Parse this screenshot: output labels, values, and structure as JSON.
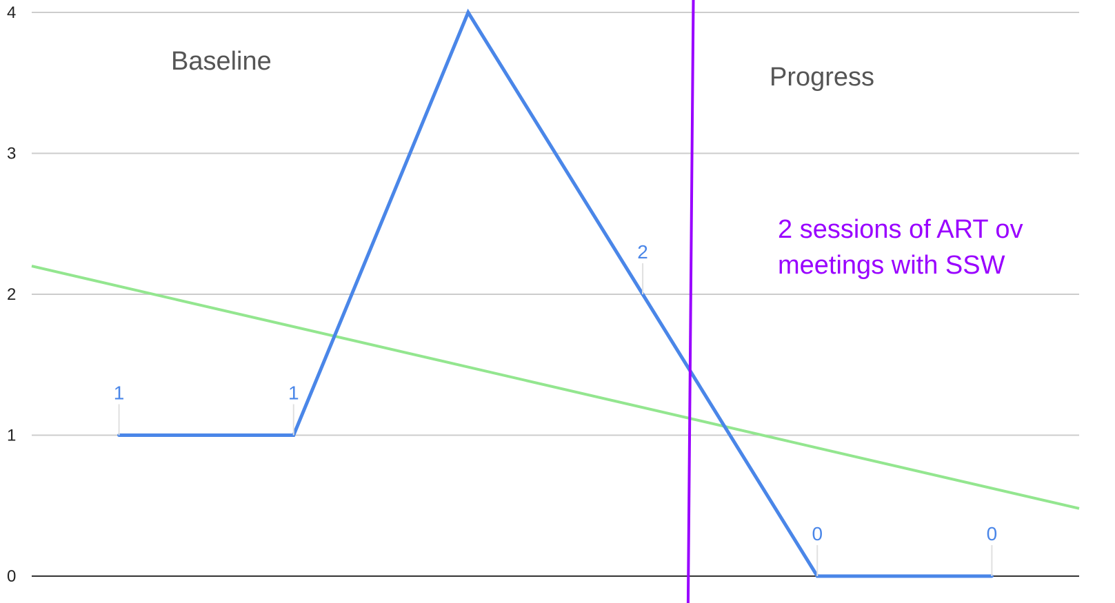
{
  "chart_data": {
    "type": "line",
    "x": [
      1,
      2,
      3,
      4,
      5,
      6
    ],
    "series": [
      {
        "values": [
          1,
          1,
          4,
          2,
          0,
          0
        ],
        "data_labels": [
          "1",
          "1",
          "",
          "2",
          "0",
          "0"
        ],
        "color": "#4a86e8"
      }
    ],
    "trendline": {
      "start": [
        0.5,
        2.2
      ],
      "end": [
        6.5,
        0.48
      ],
      "color": "#93e68f"
    },
    "phase_divider": {
      "x_bottom": 4.26,
      "x_top": 4.29,
      "color": "#9900ff"
    },
    "phase_labels": {
      "baseline": "Baseline",
      "progress": "Progress"
    },
    "annotation": {
      "lines": [
        "2 sessions of ART ov",
        "meetings with SSW"
      ],
      "color": "#9900ff"
    },
    "yticks": [
      "0",
      "1",
      "2",
      "3",
      "4"
    ],
    "ylim": [
      0,
      4
    ],
    "xlim": [
      0.5,
      6.5
    ],
    "grid": true,
    "title": "",
    "xlabel": "",
    "ylabel": ""
  }
}
